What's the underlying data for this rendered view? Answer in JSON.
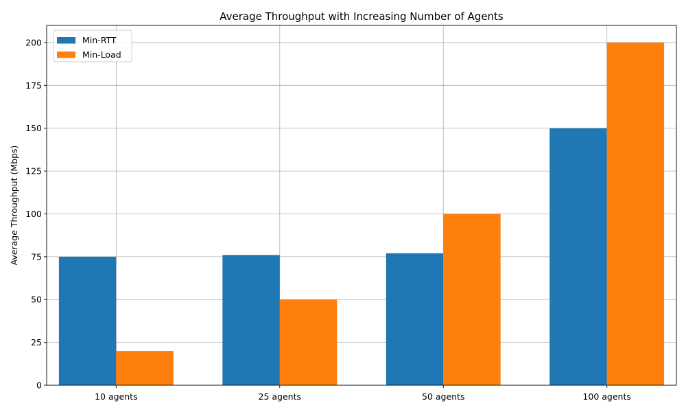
{
  "chart_data": {
    "type": "bar",
    "title": "Average Throughput with Increasing Number of Agents",
    "xlabel": "",
    "ylabel": "Average Throughput (Mbps)",
    "categories": [
      "10 agents",
      "25 agents",
      "50 agents",
      "100 agents"
    ],
    "series": [
      {
        "name": "Min-RTT",
        "values": [
          75,
          76,
          77,
          150
        ],
        "color": "#1f77b4"
      },
      {
        "name": "Min-Load",
        "values": [
          20,
          50,
          100,
          200
        ],
        "color": "#ff7f0e"
      }
    ],
    "ylim": [
      0,
      210
    ],
    "yticks": [
      0,
      25,
      50,
      75,
      100,
      125,
      150,
      175,
      200
    ],
    "grid": true,
    "legend_position": "top-left"
  }
}
